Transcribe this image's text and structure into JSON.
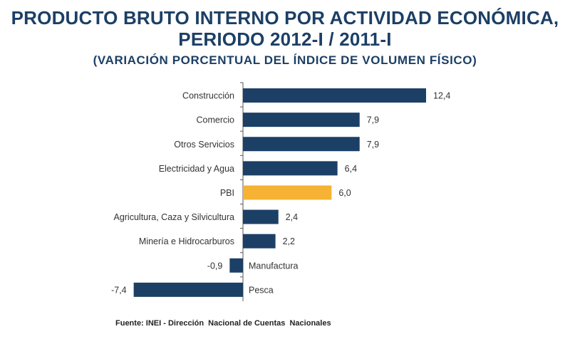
{
  "title_line1": "PRODUCTO BRUTO INTERNO POR ACTIVIDAD ECONÓMICA,",
  "title_line2": "PERIODO 2012-I / 2011-I",
  "subtitle": "(VARIACIÓN PORCENTUAL DEL ÍNDICE DE VOLUMEN FÍSICO)",
  "source": "Fuente: INEI - Dirección  Nacional de Cuentas  Nacionales",
  "colors": {
    "bar": "#1c3f66",
    "highlight": "#f5b233",
    "axis": "#555555",
    "text": "#333333"
  },
  "chart_data": {
    "type": "bar",
    "orientation": "horizontal",
    "categories": [
      "Construcción",
      "Comercio",
      "Otros Servicios",
      "Electricidad y Agua",
      "PBI",
      "Agricultura, Caza y Silvicultura",
      "Minería e Hidrocarburos",
      "Manufactura",
      "Pesca"
    ],
    "values": [
      12.4,
      7.9,
      7.9,
      6.4,
      6.0,
      2.4,
      2.2,
      -0.9,
      -7.4
    ],
    "data_labels": [
      "12,4",
      "7,9",
      "7,9",
      "6,4",
      "6,0",
      "2,4",
      "2,2",
      "-0,9",
      "-7,4"
    ],
    "highlight_category": "PBI",
    "xlim": [
      -7.4,
      12.4
    ],
    "grid": false,
    "legend": "none"
  }
}
